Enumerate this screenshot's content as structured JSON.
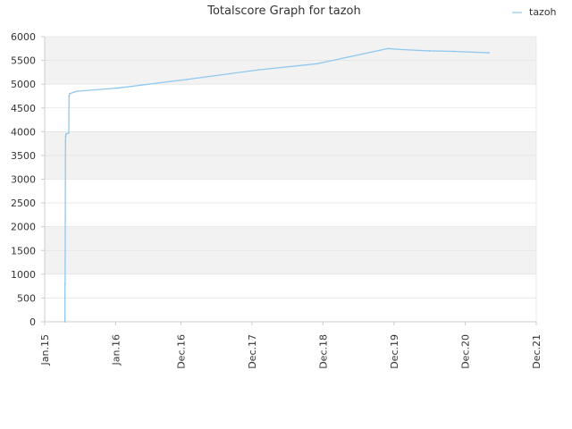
{
  "chart_data": {
    "type": "line",
    "title": "Totalscore Graph for tazoh",
    "xlabel": "",
    "ylabel": "",
    "x_ticks": [
      "Jan.15",
      "Jan.16",
      "Dec.16",
      "Dec.17",
      "Dec.18",
      "Dec.19",
      "Dec.20",
      "Dec.21"
    ],
    "ylim": [
      0,
      6000
    ],
    "y_ticks": [
      "0",
      "500",
      "1000",
      "1500",
      "2000",
      "2500",
      "3000",
      "3500",
      "4000",
      "4500",
      "5000",
      "5500",
      "6000"
    ],
    "grid": true,
    "legend_position": "top-right",
    "colors": {
      "line": "#90c8f0",
      "band": "#f2f2f2",
      "axis": "#cccccc",
      "grid": "#dddddd"
    },
    "series": [
      {
        "name": "tazoh",
        "x": [
          "2015-04-15",
          "2015-04-15",
          "2015-04-16",
          "2015-04-18",
          "2015-04-19",
          "2015-04-20",
          "2015-05-05",
          "2015-05-06",
          "2015-05-10",
          "2015-06-15",
          "2016-01-15",
          "2017-01-01",
          "2018-01-01",
          "2018-11-01",
          "2019-11-01",
          "2020-01-01",
          "2020-06-01",
          "2020-10-01",
          "2021-04-01"
        ],
        "values": [
          0,
          780,
          800,
          3800,
          3900,
          3950,
          3970,
          4750,
          4800,
          4850,
          4920,
          5100,
          5300,
          5430,
          5750,
          5730,
          5700,
          5690,
          5660
        ]
      }
    ]
  }
}
